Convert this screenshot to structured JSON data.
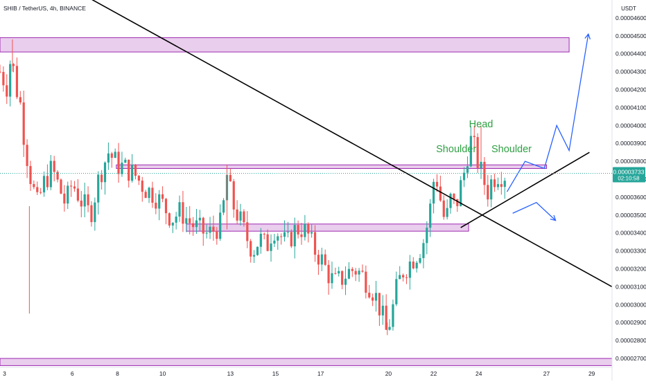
{
  "chart_data": {
    "type": "candlestick",
    "title": "SHIB / TetherUS, 4h, BINANCE",
    "y_unit": "USDT",
    "ylim": [
      2.65e-05,
      4.7e-05
    ],
    "xlim": [
      2.8,
      29.9
    ],
    "y_ticks": [
      "0.00004600",
      "0.00004500",
      "0.00004400",
      "0.00004300",
      "0.00004200",
      "0.00004100",
      "0.00004000",
      "0.00003900",
      "0.00003800",
      "0.00003700",
      "0.00003600",
      "0.00003500",
      "0.00003400",
      "0.00003300",
      "0.00003200",
      "0.00003100",
      "0.00003000",
      "0.00002900",
      "0.00002800",
      "0.00002700"
    ],
    "x_ticks": [
      "3",
      "6",
      "8",
      "10",
      "13",
      "15",
      "17",
      "20",
      "22",
      "24",
      "27",
      "29"
    ],
    "x_tick_values": [
      3,
      6,
      8,
      10,
      13,
      15,
      17,
      20,
      22,
      24,
      27,
      29
    ],
    "last_price": {
      "value": "0.00003733",
      "countdown": "02:10:58",
      "color": "#26a69a"
    },
    "colors": {
      "up": "#26a69a",
      "down": "#ef5350",
      "zone_fill": "#e1bee7",
      "zone_stroke": "#9c27b0",
      "trendline": "#000000",
      "projection": "#2962ff",
      "label": "#2ea043",
      "axis_text": "#131722"
    },
    "candle_anchors": [
      [
        2.8,
        4.3e-05
      ],
      [
        3.1,
        4.22e-05
      ],
      [
        3.3,
        4.4e-05
      ],
      [
        3.5,
        4.22e-05
      ],
      [
        3.7,
        4.12e-05
      ],
      [
        3.9,
        3.9e-05
      ],
      [
        4.2,
        3.68e-05
      ],
      [
        4.45,
        3.56e-05
      ],
      [
        4.75,
        3.68e-05
      ],
      [
        5.1,
        3.76e-05
      ],
      [
        5.4,
        3.66e-05
      ],
      [
        5.7,
        3.56e-05
      ],
      [
        6.0,
        3.68e-05
      ],
      [
        6.4,
        3.58e-05
      ],
      [
        6.8,
        3.5e-05
      ],
      [
        7.2,
        3.72e-05
      ],
      [
        7.6,
        3.85e-05
      ],
      [
        8.0,
        3.78e-05
      ],
      [
        8.4,
        3.76e-05
      ],
      [
        8.8,
        3.72e-05
      ],
      [
        9.2,
        3.65e-05
      ],
      [
        9.6,
        3.62e-05
      ],
      [
        10.0,
        3.56e-05
      ],
      [
        10.4,
        3.48e-05
      ],
      [
        10.8,
        3.52e-05
      ],
      [
        11.2,
        3.46e-05
      ],
      [
        11.6,
        3.42e-05
      ],
      [
        12.0,
        3.39e-05
      ],
      [
        12.3,
        3.42e-05
      ],
      [
        12.6,
        3.45e-05
      ],
      [
        12.85,
        3.72e-05
      ],
      [
        13.1,
        3.56e-05
      ],
      [
        13.4,
        3.48e-05
      ],
      [
        13.7,
        3.38e-05
      ],
      [
        14.0,
        3.3e-05
      ],
      [
        14.3,
        3.37e-05
      ],
      [
        14.6,
        3.32e-05
      ],
      [
        14.9,
        3.43e-05
      ],
      [
        15.2,
        3.39e-05
      ],
      [
        15.5,
        3.33e-05
      ],
      [
        15.8,
        3.41e-05
      ],
      [
        16.1,
        3.43e-05
      ],
      [
        16.4,
        3.4e-05
      ],
      [
        16.7,
        3.31e-05
      ],
      [
        17.0,
        3.26e-05
      ],
      [
        17.3,
        3.18e-05
      ],
      [
        17.6,
        3.12e-05
      ],
      [
        17.9,
        3.14e-05
      ],
      [
        18.2,
        3.18e-05
      ],
      [
        18.5,
        3.2e-05
      ],
      [
        18.8,
        3.17e-05
      ],
      [
        19.1,
        3.12e-05
      ],
      [
        19.4,
        3.06e-05
      ],
      [
        19.7,
        2.95e-05
      ],
      [
        19.9,
        2.85e-05
      ],
      [
        20.1,
        2.92e-05
      ],
      [
        20.35,
        3.08e-05
      ],
      [
        20.6,
        3.18e-05
      ],
      [
        20.85,
        3.22e-05
      ],
      [
        21.1,
        3.26e-05
      ],
      [
        21.35,
        3.3e-05
      ],
      [
        21.6,
        3.37e-05
      ],
      [
        21.8,
        3.5e-05
      ],
      [
        21.95,
        3.62e-05
      ],
      [
        22.05,
        3.76e-05
      ],
      [
        22.2,
        3.66e-05
      ],
      [
        22.35,
        3.55e-05
      ],
      [
        22.5,
        3.46e-05
      ],
      [
        22.65,
        3.52e-05
      ],
      [
        22.8,
        3.62e-05
      ],
      [
        22.95,
        3.52e-05
      ],
      [
        23.1,
        3.61e-05
      ],
      [
        23.25,
        3.69e-05
      ],
      [
        23.4,
        3.76e-05
      ],
      [
        23.55,
        3.88e-05
      ],
      [
        23.7,
        3.93e-05
      ],
      [
        23.85,
        3.84e-05
      ],
      [
        24.0,
        3.78e-05
      ],
      [
        24.15,
        3.72e-05
      ],
      [
        24.3,
        3.66e-05
      ],
      [
        24.45,
        3.62e-05
      ],
      [
        24.6,
        3.72e-05
      ],
      [
        24.75,
        3.71e-05
      ],
      [
        24.9,
        3.74e-05
      ],
      [
        25.05,
        3.72e-05
      ],
      [
        25.2,
        3.73e-05
      ]
    ],
    "candle_step": 0.15,
    "zones": [
      {
        "x0": 2.8,
        "x1": 28.0,
        "y0": 4.41e-05,
        "y1": 4.49e-05
      },
      {
        "x0": 7.95,
        "x1": 27.0,
        "y0": 3.76e-05,
        "y1": 3.78e-05
      },
      {
        "x0": 11.05,
        "x1": 23.55,
        "y0": 3.41e-05,
        "y1": 3.45e-05
      },
      {
        "x0": 2.8,
        "x1": 29.9,
        "y0": 2.66e-05,
        "y1": 2.7e-05
      }
    ],
    "trendlines": [
      {
        "x0": 5.9,
        "y0": 4.77e-05,
        "x1": 29.9,
        "y1": 3.1e-05
      },
      {
        "x0": 23.2,
        "y0": 3.43e-05,
        "x1": 28.9,
        "y1": 3.85e-05
      }
    ],
    "projections": [
      {
        "points": [
          [
            25.25,
            3.63e-05
          ],
          [
            26.05,
            3.8e-05
          ],
          [
            26.9,
            3.76e-05
          ],
          [
            27.45,
            4e-05
          ],
          [
            28.0,
            3.86e-05
          ],
          [
            28.85,
            4.51e-05
          ]
        ],
        "arrow": true
      },
      {
        "points": [
          [
            25.5,
            3.51e-05
          ],
          [
            26.55,
            3.57e-05
          ],
          [
            27.4,
            3.47e-05
          ]
        ],
        "arrow": true
      }
    ],
    "annotations": [
      {
        "text": "Head",
        "x": 24.1,
        "y": 3.99e-05
      },
      {
        "text": "Shoulder",
        "x": 23.0,
        "y": 3.85e-05
      },
      {
        "text": "Shoulder",
        "x": 25.45,
        "y": 3.85e-05
      }
    ]
  }
}
